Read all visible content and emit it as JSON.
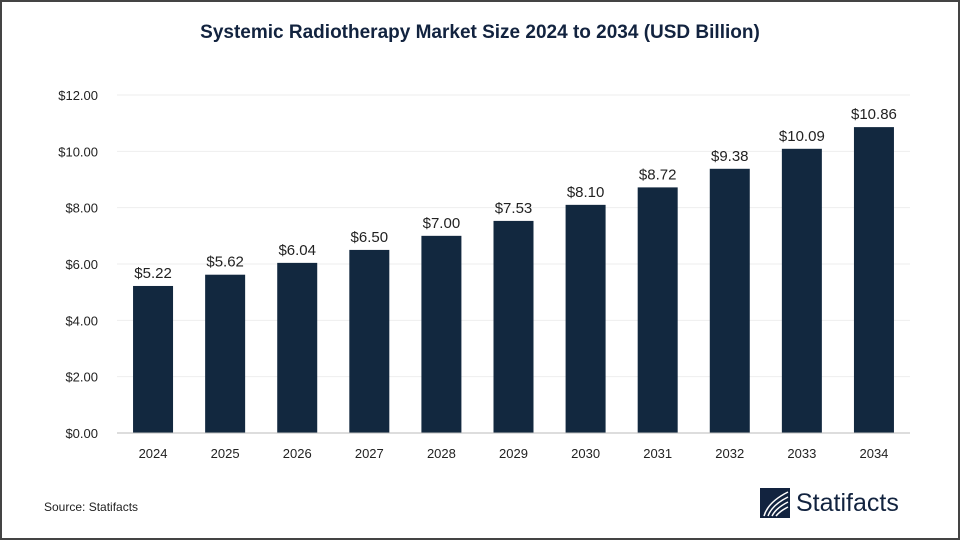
{
  "chart_data": {
    "type": "bar",
    "title": "Systemic Radiotherapy Market Size 2024 to 2034 (USD Billion)",
    "categories": [
      "2024",
      "2025",
      "2026",
      "2027",
      "2028",
      "2029",
      "2030",
      "2031",
      "2032",
      "2033",
      "2034"
    ],
    "values": [
      5.22,
      5.62,
      6.04,
      6.5,
      7.0,
      7.53,
      8.1,
      8.72,
      9.38,
      10.09,
      10.86
    ],
    "data_labels": [
      "$5.22",
      "$5.62",
      "$6.04",
      "$6.50",
      "$7.00",
      "$7.53",
      "$8.10",
      "$8.72",
      "$9.38",
      "$10.09",
      "$10.86"
    ],
    "yticks": [
      0,
      2,
      4,
      6,
      8,
      10,
      12
    ],
    "ytick_labels": [
      "$0.00",
      "$2.00",
      "$4.00",
      "$6.00",
      "$8.00",
      "$10.00",
      "$12.00"
    ],
    "ylim": [
      0,
      12
    ],
    "xlabel": "",
    "ylabel": "",
    "grid": true,
    "bar_color": "#12283f"
  },
  "source": "Source: Statifacts",
  "logo": {
    "text": "Statifacts",
    "icon": "statifacts-logo-icon"
  }
}
